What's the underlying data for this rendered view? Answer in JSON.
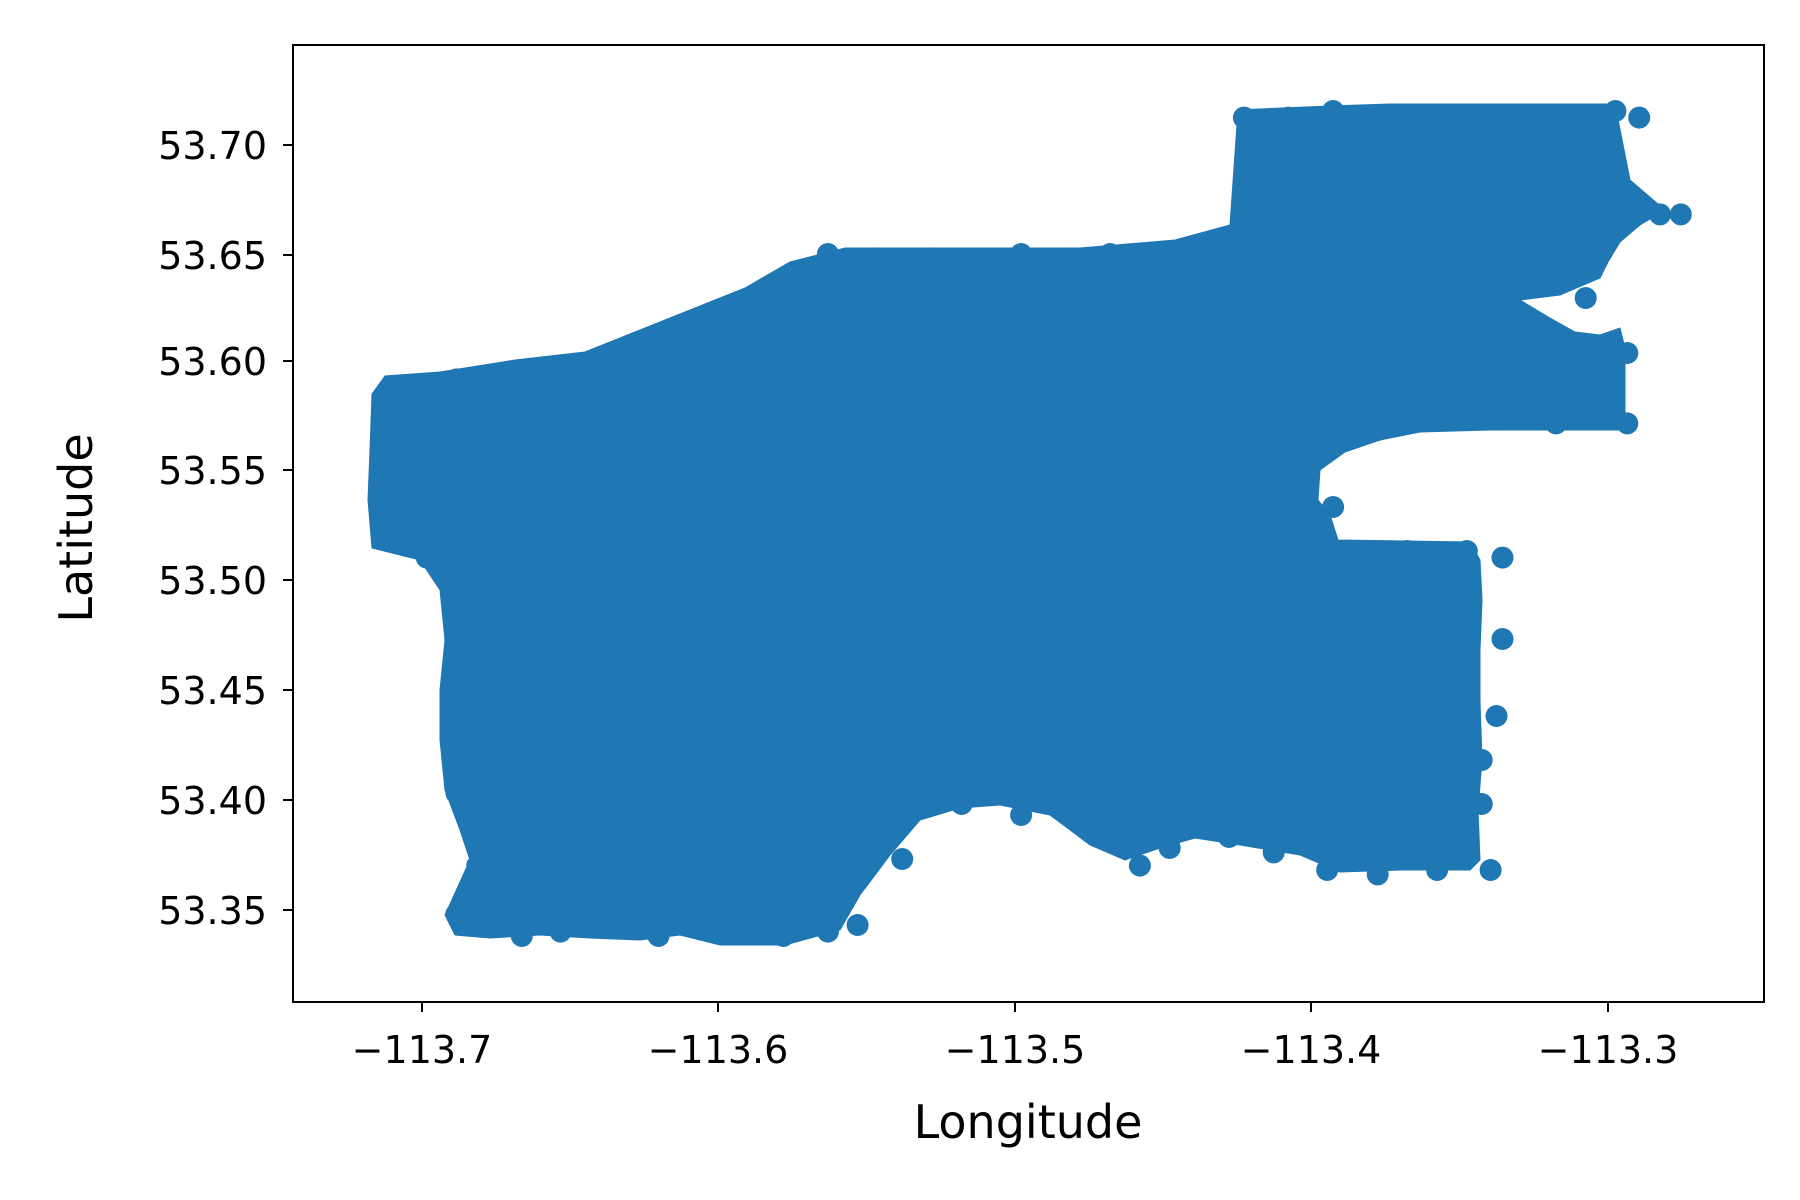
{
  "chart_data": {
    "type": "scatter",
    "title": "",
    "xlabel": "Longitude",
    "ylabel": "Latitude",
    "xlim": [
      -113.745,
      -113.25
    ],
    "ylim": [
      53.31,
      53.745
    ],
    "xticks": [
      -113.7,
      -113.6,
      -113.5,
      -113.4,
      -113.3
    ],
    "xtick_labels": [
      "−113.7",
      "−113.6",
      "−113.5",
      "−113.4",
      "−113.3"
    ],
    "yticks": [
      53.35,
      53.4,
      53.45,
      53.5,
      53.55,
      53.6,
      53.65,
      53.7
    ],
    "ytick_labels": [
      "53.35",
      "53.40",
      "53.45",
      "53.50",
      "53.55",
      "53.60",
      "53.65",
      "53.70"
    ],
    "grid": false,
    "legend": false,
    "color": "#1f77b4",
    "series": [
      {
        "points": [
          [
            -113.712,
            53.585
          ],
          [
            -113.712,
            53.525
          ],
          [
            -113.705,
            53.59
          ],
          [
            -113.69,
            53.593
          ],
          [
            -113.676,
            53.593
          ],
          [
            -113.662,
            53.588
          ],
          [
            -113.648,
            53.597
          ],
          [
            -113.633,
            53.6
          ],
          [
            -113.615,
            53.605
          ],
          [
            -113.6,
            53.625
          ],
          [
            -113.582,
            53.63
          ],
          [
            -113.565,
            53.65
          ],
          [
            -113.548,
            53.648
          ],
          [
            -113.53,
            53.648
          ],
          [
            -113.5,
            53.65
          ],
          [
            -113.47,
            53.65
          ],
          [
            -113.45,
            53.648
          ],
          [
            -113.43,
            53.655
          ],
          [
            -113.425,
            53.712
          ],
          [
            -113.41,
            53.712
          ],
          [
            -113.395,
            53.715
          ],
          [
            -113.38,
            53.712
          ],
          [
            -113.365,
            53.712
          ],
          [
            -113.352,
            53.712
          ],
          [
            -113.335,
            53.712
          ],
          [
            -113.32,
            53.712
          ],
          [
            -113.3,
            53.715
          ],
          [
            -113.292,
            53.712
          ],
          [
            -113.285,
            53.668
          ],
          [
            -113.278,
            53.668
          ],
          [
            -113.3,
            53.67
          ],
          [
            -113.296,
            53.605
          ],
          [
            -113.296,
            53.573
          ],
          [
            -113.32,
            53.573
          ],
          [
            -113.34,
            53.6
          ],
          [
            -113.34,
            53.575
          ],
          [
            -113.358,
            53.62
          ],
          [
            -113.38,
            53.57
          ],
          [
            -113.4,
            53.56
          ],
          [
            -113.395,
            53.535
          ],
          [
            -113.39,
            53.51
          ],
          [
            -113.37,
            53.515
          ],
          [
            -113.35,
            53.515
          ],
          [
            -113.338,
            53.512
          ],
          [
            -113.338,
            53.475
          ],
          [
            -113.34,
            53.44
          ],
          [
            -113.345,
            53.42
          ],
          [
            -113.345,
            53.4
          ],
          [
            -113.342,
            53.37
          ],
          [
            -113.36,
            53.37
          ],
          [
            -113.38,
            53.368
          ],
          [
            -113.397,
            53.37
          ],
          [
            -113.415,
            53.378
          ],
          [
            -113.43,
            53.385
          ],
          [
            -113.45,
            53.38
          ],
          [
            -113.46,
            53.372
          ],
          [
            -113.48,
            53.395
          ],
          [
            -113.5,
            53.395
          ],
          [
            -113.52,
            53.4
          ],
          [
            -113.54,
            53.375
          ],
          [
            -113.555,
            53.345
          ],
          [
            -113.565,
            53.342
          ],
          [
            -113.58,
            53.34
          ],
          [
            -113.595,
            53.345
          ],
          [
            -113.61,
            53.345
          ],
          [
            -113.622,
            53.34
          ],
          [
            -113.64,
            53.345
          ],
          [
            -113.655,
            53.342
          ],
          [
            -113.668,
            53.34
          ],
          [
            -113.68,
            53.345
          ],
          [
            -113.69,
            53.35
          ],
          [
            -113.683,
            53.372
          ],
          [
            -113.69,
            53.405
          ],
          [
            -113.685,
            53.44
          ],
          [
            -113.69,
            53.48
          ],
          [
            -113.688,
            53.505
          ],
          [
            -113.7,
            53.512
          ],
          [
            -113.712,
            53.52
          ],
          [
            -113.712,
            53.56
          ],
          [
            -113.64,
            53.58
          ],
          [
            -113.6,
            53.56
          ],
          [
            -113.56,
            53.6
          ],
          [
            -113.52,
            53.61
          ],
          [
            -113.48,
            53.6
          ],
          [
            -113.44,
            53.62
          ],
          [
            -113.4,
            53.63
          ],
          [
            -113.38,
            53.66
          ],
          [
            -113.34,
            53.69
          ],
          [
            -113.32,
            53.65
          ],
          [
            -113.31,
            53.63
          ],
          [
            -113.36,
            53.6
          ],
          [
            -113.42,
            53.58
          ],
          [
            -113.46,
            53.56
          ],
          [
            -113.5,
            53.54
          ],
          [
            -113.54,
            53.52
          ],
          [
            -113.58,
            53.5
          ],
          [
            -113.62,
            53.48
          ],
          [
            -113.66,
            53.46
          ],
          [
            -113.68,
            53.43
          ],
          [
            -113.64,
            53.42
          ],
          [
            -113.6,
            53.44
          ],
          [
            -113.56,
            53.46
          ],
          [
            -113.52,
            53.48
          ],
          [
            -113.48,
            53.5
          ],
          [
            -113.44,
            53.52
          ],
          [
            -113.4,
            53.5
          ],
          [
            -113.37,
            53.48
          ],
          [
            -113.35,
            53.45
          ],
          [
            -113.37,
            53.42
          ],
          [
            -113.4,
            53.42
          ],
          [
            -113.44,
            53.44
          ],
          [
            -113.48,
            53.46
          ],
          [
            -113.52,
            53.44
          ],
          [
            -113.56,
            53.42
          ],
          [
            -113.6,
            53.4
          ],
          [
            -113.63,
            53.38
          ],
          [
            -113.66,
            53.37
          ],
          [
            -113.62,
            53.36
          ],
          [
            -113.58,
            53.37
          ],
          [
            -113.56,
            53.385
          ],
          [
            -113.52,
            53.42
          ],
          [
            -113.48,
            53.43
          ],
          [
            -113.44,
            53.47
          ],
          [
            -113.4,
            53.46
          ],
          [
            -113.42,
            53.5
          ],
          [
            -113.46,
            53.53
          ],
          [
            -113.5,
            53.57
          ],
          [
            -113.54,
            53.56
          ],
          [
            -113.58,
            53.54
          ],
          [
            -113.62,
            53.52
          ],
          [
            -113.66,
            53.5
          ],
          [
            -113.69,
            53.54
          ],
          [
            -113.66,
            53.56
          ],
          [
            -113.62,
            53.57
          ],
          [
            -113.58,
            53.59
          ],
          [
            -113.54,
            53.62
          ],
          [
            -113.5,
            53.63
          ],
          [
            -113.46,
            53.62
          ],
          [
            -113.42,
            53.6
          ],
          [
            -113.38,
            53.62
          ],
          [
            -113.35,
            53.64
          ],
          [
            -113.33,
            53.68
          ],
          [
            -113.36,
            53.7
          ],
          [
            -113.4,
            53.69
          ],
          [
            -113.42,
            53.67
          ]
        ]
      }
    ]
  }
}
